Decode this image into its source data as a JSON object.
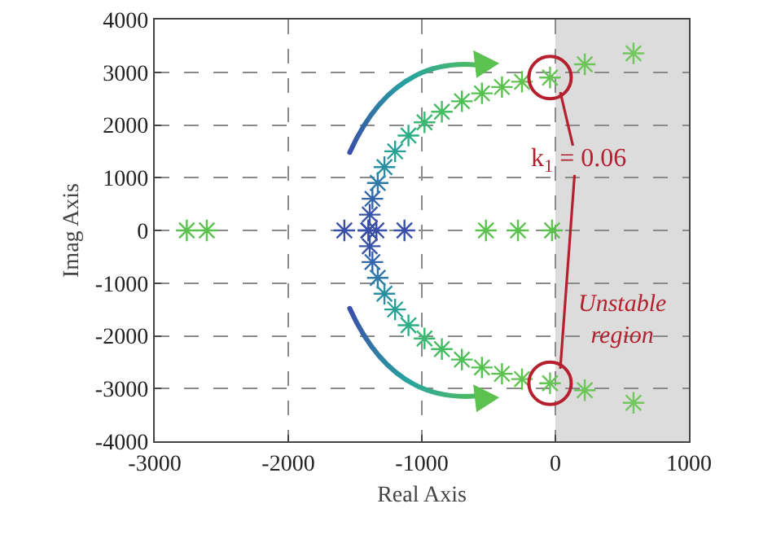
{
  "chart_data": {
    "type": "scatter",
    "xlabel": "Real Axis",
    "ylabel": "Imag Axis",
    "xlim": [
      -3000,
      1000
    ],
    "xticks": [
      -3000,
      -2000,
      -1000,
      0,
      1000
    ],
    "ylim": [
      -4000,
      4000
    ],
    "yticks": [
      -4000,
      -3000,
      -2000,
      -1000,
      0,
      1000,
      2000,
      3000,
      4000
    ],
    "grid": true,
    "marker": "cross",
    "series": [
      {
        "x": [
          -1400,
          -1390,
          -1370,
          -1330,
          -1280,
          -1200,
          -1100,
          -980,
          -850,
          -700,
          -550,
          -400,
          -250,
          -40,
          220,
          585
        ],
        "values": [
          0,
          300,
          600,
          900,
          1200,
          1500,
          1800,
          2050,
          2250,
          2450,
          2600,
          2720,
          2820,
          2900,
          3150,
          3360
        ],
        "colors": [
          "#3a4fa8",
          "#3a55a8",
          "#3366aa",
          "#2f7aa8",
          "#2a8fa0",
          "#27a096",
          "#2cad85",
          "#3bb872",
          "#45bd62",
          "#4cc055",
          "#55c250",
          "#5cc24f",
          "#62c350",
          "#66c355",
          "#6ec65a",
          "#72c85e"
        ]
      },
      {
        "x": [
          -1400,
          -1390,
          -1370,
          -1330,
          -1280,
          -1200,
          -1100,
          -980,
          -850,
          -700,
          -550,
          -400,
          -250,
          -40,
          220,
          585
        ],
        "values": [
          0,
          -300,
          -600,
          -900,
          -1200,
          -1500,
          -1800,
          -2050,
          -2250,
          -2450,
          -2600,
          -2720,
          -2820,
          -2900,
          -3030,
          -3270
        ],
        "colors": [
          "#3a4fa8",
          "#3a55a8",
          "#3366aa",
          "#2f7aa8",
          "#2a8fa0",
          "#27a096",
          "#2cad85",
          "#3bb872",
          "#45bd62",
          "#4cc055",
          "#55c250",
          "#5cc24f",
          "#62c350",
          "#66c355",
          "#6ec65a",
          "#72c85e"
        ]
      },
      {
        "x": [
          -2760,
          -2610,
          -1580,
          -1340,
          -1130,
          -520,
          -280,
          -25
        ],
        "values": [
          0,
          0,
          0,
          0,
          0,
          0,
          0,
          0
        ],
        "colors": [
          "#5cc24f",
          "#5cc24f",
          "#3a4fa8",
          "#3a4fa8",
          "#3a4fa8",
          "#5cc24f",
          "#5cc24f",
          "#5cc24f"
        ]
      }
    ],
    "bands": [
      {
        "axis": "x",
        "from": 0,
        "to": 1000,
        "label": "Unstable region",
        "color": "#dcdcdc"
      }
    ],
    "annotations": [
      {
        "text": "k$_{1}$ = 0.06",
        "x": -40,
        "y": 2900
      }
    ]
  }
}
